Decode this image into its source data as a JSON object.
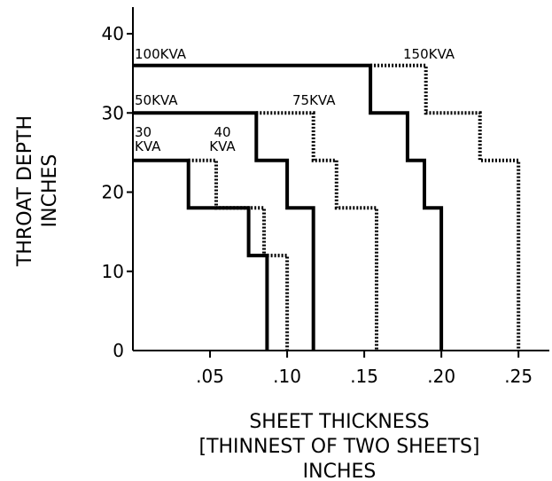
{
  "chart_data": {
    "type": "line",
    "xlabel": [
      "SHEET THICKNESS",
      "[THINNEST OF TWO SHEETS]",
      "INCHES"
    ],
    "ylabel": [
      "THROAT DEPTH",
      "INCHES"
    ],
    "xlim": [
      0,
      0.27
    ],
    "ylim": [
      0,
      40
    ],
    "x_ticks": [
      {
        "value": 0.05,
        "label": ".05"
      },
      {
        "value": 0.1,
        "label": ".10"
      },
      {
        "value": 0.15,
        "label": ".15"
      },
      {
        "value": 0.2,
        "label": ".20"
      },
      {
        "value": 0.25,
        "label": ".25"
      }
    ],
    "y_ticks": [
      {
        "value": 0,
        "label": "0"
      },
      {
        "value": 10,
        "label": "10"
      },
      {
        "value": 20,
        "label": "20"
      },
      {
        "value": 30,
        "label": "30"
      },
      {
        "value": 40,
        "label": "40"
      }
    ],
    "series": [
      {
        "label_lines": [
          "30",
          "KVA"
        ],
        "style": "solid",
        "color": "#000000",
        "points": [
          [
            0,
            24
          ],
          [
            0.036,
            24
          ],
          [
            0.036,
            18
          ],
          [
            0.075,
            18
          ],
          [
            0.075,
            12
          ],
          [
            0.087,
            12
          ],
          [
            0.087,
            0
          ]
        ]
      },
      {
        "label_lines": [
          "40",
          "KVA"
        ],
        "style": "dotted",
        "color": "#000000",
        "points": [
          [
            0.036,
            24
          ],
          [
            0.054,
            24
          ],
          [
            0.054,
            18
          ],
          [
            0.085,
            18
          ],
          [
            0.085,
            12
          ],
          [
            0.1,
            12
          ],
          [
            0.1,
            0
          ]
        ]
      },
      {
        "label_lines": [
          "50KVA"
        ],
        "style": "solid",
        "color": "#000000",
        "points": [
          [
            0,
            30
          ],
          [
            0.08,
            30
          ],
          [
            0.08,
            24
          ],
          [
            0.1,
            24
          ],
          [
            0.1,
            18
          ],
          [
            0.117,
            18
          ],
          [
            0.117,
            0
          ]
        ]
      },
      {
        "label_lines": [
          "75KVA"
        ],
        "style": "dotted",
        "color": "#000000",
        "points": [
          [
            0.08,
            30
          ],
          [
            0.117,
            30
          ],
          [
            0.117,
            24
          ],
          [
            0.132,
            24
          ],
          [
            0.132,
            18
          ],
          [
            0.158,
            18
          ],
          [
            0.158,
            0
          ]
        ]
      },
      {
        "label_lines": [
          "100KVA"
        ],
        "style": "solid",
        "color": "#000000",
        "points": [
          [
            0,
            36
          ],
          [
            0.154,
            36
          ],
          [
            0.154,
            30
          ],
          [
            0.178,
            30
          ],
          [
            0.178,
            24
          ],
          [
            0.189,
            24
          ],
          [
            0.189,
            18
          ],
          [
            0.2,
            18
          ],
          [
            0.2,
            0
          ]
        ]
      },
      {
        "label_lines": [
          "150KVA"
        ],
        "style": "dotted",
        "color": "#000000",
        "points": [
          [
            0.154,
            36
          ],
          [
            0.19,
            36
          ],
          [
            0.19,
            30
          ],
          [
            0.225,
            30
          ],
          [
            0.225,
            24
          ],
          [
            0.25,
            24
          ],
          [
            0.25,
            0
          ]
        ]
      }
    ]
  }
}
